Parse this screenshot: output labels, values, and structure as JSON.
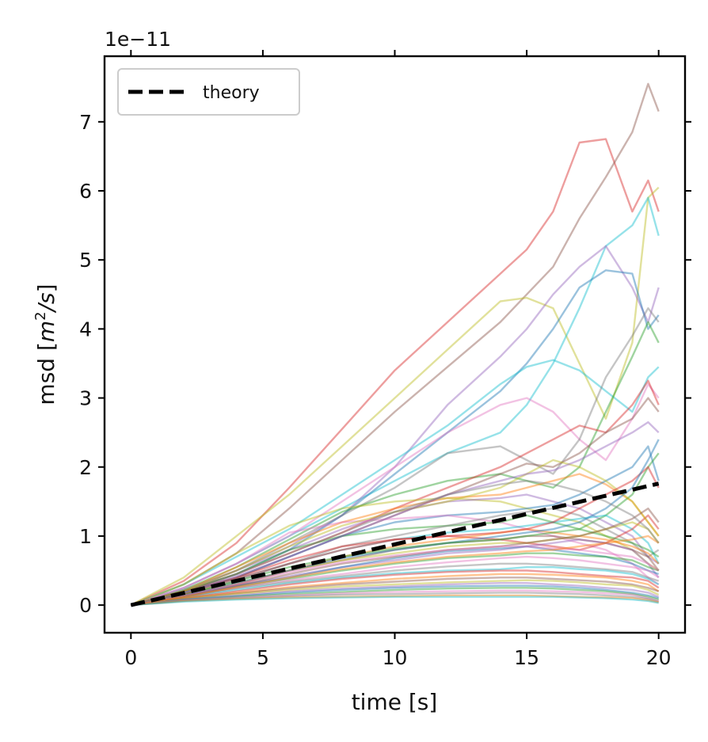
{
  "chart_data": {
    "type": "line",
    "xlabel": "time [s]",
    "ylabel_prefix": "msd [",
    "ylabel_math": "m",
    "ylabel_sup": "2",
    "ylabel_math2": "/s",
    "ylabel_suffix": "]",
    "offset_text": "1e−11",
    "xlim": [
      -1,
      21
    ],
    "ylim": [
      -0.4,
      7.95
    ],
    "x_ticks": [
      0,
      5,
      10,
      15,
      20
    ],
    "x_tick_labels": [
      "0",
      "5",
      "10",
      "15",
      "20"
    ],
    "y_ticks": [
      0,
      1,
      2,
      3,
      4,
      5,
      6,
      7
    ],
    "y_tick_labels": [
      "0",
      "1",
      "2",
      "3",
      "4",
      "5",
      "6",
      "7"
    ],
    "y_scale_factor": "1e-11",
    "grid": false,
    "legend": {
      "placement": "top-left",
      "entries": [
        "theory"
      ]
    },
    "theory": {
      "name": "theory",
      "color": "#000000",
      "x": [
        0,
        20
      ],
      "y": [
        0,
        1.76
      ]
    },
    "trajectory_colors": [
      "#1f77b4",
      "#ff7f0e",
      "#2ca02c",
      "#d62728",
      "#9467bd",
      "#8c564b",
      "#e377c2",
      "#7f7f7f",
      "#bcbd22",
      "#17becf"
    ],
    "x": [
      0,
      2,
      4,
      6,
      8,
      10,
      12,
      14,
      15,
      16,
      17,
      18,
      19,
      19.6,
      20
    ],
    "trajectories": [
      {
        "color": "#d62728",
        "y": [
          0,
          0.35,
          0.9,
          1.7,
          2.55,
          3.4,
          4.1,
          4.8,
          5.15,
          5.7,
          6.7,
          6.75,
          5.7,
          6.15,
          5.7
        ]
      },
      {
        "color": "#8c564b",
        "y": [
          0,
          0.3,
          0.75,
          1.4,
          2.1,
          2.8,
          3.45,
          4.1,
          4.5,
          4.9,
          5.6,
          6.2,
          6.85,
          7.55,
          7.15
        ]
      },
      {
        "color": "#bcbd22",
        "y": [
          0,
          0.4,
          1.0,
          1.6,
          2.3,
          3.0,
          3.7,
          4.4,
          4.45,
          4.3,
          3.5,
          2.7,
          3.8,
          5.9,
          6.05
        ]
      },
      {
        "color": "#17becf",
        "y": [
          0,
          0.25,
          0.6,
          1.0,
          1.4,
          1.8,
          2.2,
          2.5,
          2.9,
          3.5,
          4.3,
          5.2,
          5.5,
          5.9,
          5.35
        ]
      },
      {
        "color": "#9467bd",
        "y": [
          0,
          0.22,
          0.5,
          0.85,
          1.3,
          2.0,
          2.9,
          3.6,
          4.0,
          4.5,
          4.9,
          5.2,
          4.6,
          4.1,
          4.6
        ]
      },
      {
        "color": "#1f77b4",
        "y": [
          0,
          0.2,
          0.45,
          0.8,
          1.3,
          1.9,
          2.5,
          3.1,
          3.5,
          4.0,
          4.6,
          4.85,
          4.8,
          4.0,
          4.2
        ]
      },
      {
        "color": "#17becf",
        "y": [
          0,
          0.3,
          0.7,
          1.1,
          1.6,
          2.1,
          2.6,
          3.2,
          3.45,
          3.55,
          3.4,
          3.1,
          2.8,
          3.3,
          3.45
        ]
      },
      {
        "color": "#e377c2",
        "y": [
          0,
          0.25,
          0.6,
          1.0,
          1.5,
          2.0,
          2.5,
          2.9,
          3.0,
          2.8,
          2.4,
          2.1,
          2.7,
          3.2,
          3.0
        ]
      },
      {
        "color": "#7f7f7f",
        "y": [
          0,
          0.2,
          0.5,
          0.9,
          1.3,
          1.7,
          2.2,
          2.3,
          2.1,
          1.9,
          2.4,
          3.3,
          3.9,
          4.3,
          4.1
        ]
      },
      {
        "color": "#2ca02c",
        "y": [
          0,
          0.22,
          0.55,
          0.95,
          1.35,
          1.6,
          1.8,
          1.9,
          1.8,
          1.7,
          2.0,
          2.8,
          3.6,
          4.1,
          3.8
        ]
      },
      {
        "color": "#d62728",
        "y": [
          0,
          0.2,
          0.45,
          0.75,
          1.05,
          1.4,
          1.7,
          2.0,
          2.2,
          2.4,
          2.6,
          2.5,
          2.9,
          3.25,
          2.9
        ]
      },
      {
        "color": "#8c564b",
        "y": [
          0,
          0.18,
          0.4,
          0.7,
          1.0,
          1.3,
          1.6,
          1.9,
          2.05,
          2.0,
          2.2,
          2.5,
          2.7,
          3.0,
          2.8
        ]
      },
      {
        "color": "#ff7f0e",
        "y": [
          0,
          0.2,
          0.55,
          0.9,
          1.2,
          1.4,
          1.55,
          1.6,
          1.7,
          1.8,
          1.9,
          1.75,
          1.5,
          1.2,
          1.0
        ]
      },
      {
        "color": "#bcbd22",
        "y": [
          0,
          0.3,
          0.75,
          1.15,
          1.4,
          1.5,
          1.55,
          1.5,
          1.4,
          1.3,
          1.2,
          1.0,
          0.8,
          0.6,
          0.5
        ]
      },
      {
        "color": "#9467bd",
        "y": [
          0,
          0.2,
          0.5,
          0.8,
          1.1,
          1.35,
          1.5,
          1.55,
          1.6,
          1.5,
          1.4,
          1.2,
          1.0,
          0.7,
          0.6
        ]
      },
      {
        "color": "#1f77b4",
        "y": [
          0,
          0.18,
          0.4,
          0.7,
          1.0,
          1.2,
          1.3,
          1.35,
          1.4,
          1.45,
          1.6,
          1.8,
          2.0,
          2.3,
          1.8
        ]
      },
      {
        "color": "#e377c2",
        "y": [
          0,
          0.25,
          0.6,
          1.05,
          1.2,
          1.25,
          1.3,
          1.2,
          1.1,
          1.0,
          0.9,
          0.8,
          0.6,
          0.4,
          0.3
        ]
      },
      {
        "color": "#2ca02c",
        "y": [
          0,
          0.2,
          0.45,
          0.8,
          1.0,
          1.1,
          1.15,
          1.2,
          1.3,
          1.2,
          1.1,
          1.3,
          1.6,
          2.0,
          2.2
        ]
      },
      {
        "color": "#7f7f7f",
        "y": [
          0,
          0.15,
          0.35,
          0.6,
          0.85,
          1.0,
          1.15,
          1.3,
          1.35,
          1.4,
          1.3,
          1.1,
          0.9,
          0.7,
          0.8
        ]
      },
      {
        "color": "#17becf",
        "y": [
          0,
          0.18,
          0.38,
          0.6,
          0.8,
          0.95,
          1.05,
          1.1,
          1.15,
          1.2,
          1.25,
          1.3,
          1.1,
          0.9,
          0.6
        ]
      },
      {
        "color": "#d62728",
        "y": [
          0,
          0.2,
          0.4,
          0.65,
          0.85,
          0.95,
          1.0,
          0.95,
          0.9,
          0.85,
          0.8,
          0.9,
          1.1,
          1.3,
          1.1
        ]
      },
      {
        "color": "#ff7f0e",
        "y": [
          0,
          0.15,
          0.3,
          0.5,
          0.7,
          0.85,
          0.95,
          1.05,
          1.1,
          1.05,
          1.0,
          0.95,
          0.85,
          0.75,
          0.6
        ]
      },
      {
        "color": "#8c564b",
        "y": [
          0,
          0.14,
          0.3,
          0.5,
          0.65,
          0.8,
          0.9,
          0.95,
          1.0,
          1.0,
          0.95,
          0.9,
          0.8,
          0.7,
          0.5
        ]
      },
      {
        "color": "#bcbd22",
        "y": [
          0,
          0.15,
          0.32,
          0.5,
          0.65,
          0.75,
          0.85,
          0.9,
          0.9,
          0.95,
          1.0,
          1.1,
          1.2,
          1.1,
          0.9
        ]
      },
      {
        "color": "#9467bd",
        "y": [
          0,
          0.13,
          0.28,
          0.42,
          0.55,
          0.65,
          0.75,
          0.8,
          0.85,
          0.9,
          0.95,
          0.9,
          0.8,
          0.6,
          0.4
        ]
      },
      {
        "color": "#1f77b4",
        "y": [
          0,
          0.14,
          0.28,
          0.4,
          0.55,
          0.68,
          0.78,
          0.82,
          0.85,
          0.8,
          0.75,
          0.7,
          0.6,
          0.5,
          0.45
        ]
      },
      {
        "color": "#2ca02c",
        "y": [
          0,
          0.12,
          0.26,
          0.38,
          0.5,
          0.6,
          0.68,
          0.72,
          0.75,
          0.75,
          0.72,
          0.7,
          0.65,
          0.55,
          0.5
        ]
      },
      {
        "color": "#e377c2",
        "y": [
          0,
          0.12,
          0.25,
          0.36,
          0.45,
          0.55,
          0.62,
          0.68,
          0.7,
          0.68,
          0.65,
          0.6,
          0.55,
          0.5,
          0.4
        ]
      },
      {
        "color": "#7f7f7f",
        "y": [
          0,
          0.12,
          0.24,
          0.34,
          0.42,
          0.5,
          0.56,
          0.6,
          0.6,
          0.58,
          0.55,
          0.52,
          0.48,
          0.4,
          0.35
        ]
      },
      {
        "color": "#17becf",
        "y": [
          0,
          0.11,
          0.22,
          0.32,
          0.4,
          0.46,
          0.5,
          0.52,
          0.55,
          0.55,
          0.52,
          0.5,
          0.45,
          0.38,
          0.3
        ]
      },
      {
        "color": "#d62728",
        "y": [
          0,
          0.1,
          0.2,
          0.3,
          0.38,
          0.44,
          0.48,
          0.5,
          0.5,
          0.48,
          0.45,
          0.42,
          0.4,
          0.35,
          0.25
        ]
      },
      {
        "color": "#ff7f0e",
        "y": [
          0,
          0.1,
          0.18,
          0.26,
          0.32,
          0.38,
          0.42,
          0.45,
          0.45,
          0.44,
          0.42,
          0.4,
          0.35,
          0.3,
          0.2
        ]
      },
      {
        "color": "#8c564b",
        "y": [
          0,
          0.09,
          0.17,
          0.24,
          0.3,
          0.34,
          0.38,
          0.4,
          0.4,
          0.38,
          0.36,
          0.34,
          0.3,
          0.25,
          0.2
        ]
      },
      {
        "color": "#bcbd22",
        "y": [
          0,
          0.09,
          0.16,
          0.22,
          0.27,
          0.3,
          0.33,
          0.35,
          0.36,
          0.35,
          0.33,
          0.3,
          0.28,
          0.22,
          0.15
        ]
      },
      {
        "color": "#9467bd",
        "y": [
          0,
          0.08,
          0.14,
          0.2,
          0.24,
          0.27,
          0.3,
          0.32,
          0.32,
          0.3,
          0.28,
          0.25,
          0.22,
          0.18,
          0.12
        ]
      },
      {
        "color": "#1f77b4",
        "y": [
          0,
          0.08,
          0.13,
          0.18,
          0.22,
          0.25,
          0.27,
          0.28,
          0.28,
          0.27,
          0.25,
          0.22,
          0.18,
          0.14,
          0.1
        ]
      },
      {
        "color": "#2ca02c",
        "y": [
          0,
          0.07,
          0.12,
          0.16,
          0.19,
          0.22,
          0.24,
          0.25,
          0.25,
          0.24,
          0.22,
          0.2,
          0.16,
          0.12,
          0.08
        ]
      },
      {
        "color": "#e377c2",
        "y": [
          0,
          0.07,
          0.11,
          0.14,
          0.17,
          0.19,
          0.2,
          0.21,
          0.21,
          0.2,
          0.19,
          0.17,
          0.15,
          0.1,
          0.06
        ]
      },
      {
        "color": "#7f7f7f",
        "y": [
          0,
          0.06,
          0.1,
          0.13,
          0.15,
          0.16,
          0.17,
          0.18,
          0.18,
          0.17,
          0.16,
          0.14,
          0.12,
          0.09,
          0.05
        ]
      },
      {
        "color": "#ff7f0e",
        "y": [
          0,
          0.06,
          0.09,
          0.11,
          0.12,
          0.13,
          0.14,
          0.14,
          0.14,
          0.13,
          0.12,
          0.11,
          0.1,
          0.07,
          0.04
        ]
      },
      {
        "color": "#17becf",
        "y": [
          0,
          0.05,
          0.08,
          0.1,
          0.11,
          0.12,
          0.12,
          0.12,
          0.12,
          0.12,
          0.11,
          0.1,
          0.08,
          0.06,
          0.03
        ]
      },
      {
        "color": "#bcbd22",
        "y": [
          0,
          0.2,
          0.5,
          0.85,
          1.15,
          1.35,
          1.5,
          1.7,
          1.9,
          2.1,
          2.0,
          1.8,
          1.5,
          1.2,
          1.0
        ]
      },
      {
        "color": "#9467bd",
        "y": [
          0,
          0.17,
          0.42,
          0.7,
          1.0,
          1.3,
          1.6,
          1.8,
          1.9,
          1.95,
          2.1,
          2.3,
          2.5,
          2.65,
          2.5
        ]
      },
      {
        "color": "#d62728",
        "y": [
          0,
          0.16,
          0.38,
          0.6,
          0.8,
          0.95,
          1.0,
          1.05,
          1.1,
          1.2,
          1.4,
          1.6,
          1.8,
          2.0,
          1.7
        ]
      },
      {
        "color": "#1f77b4",
        "y": [
          0,
          0.14,
          0.32,
          0.5,
          0.68,
          0.8,
          0.9,
          1.0,
          1.05,
          1.1,
          1.2,
          1.4,
          1.7,
          2.1,
          2.4
        ]
      },
      {
        "color": "#2ca02c",
        "y": [
          0,
          0.15,
          0.35,
          0.55,
          0.7,
          0.82,
          0.9,
          0.95,
          1.0,
          1.05,
          1.1,
          1.0,
          0.9,
          0.8,
          0.7
        ]
      },
      {
        "color": "#8c564b",
        "y": [
          0,
          0.13,
          0.28,
          0.45,
          0.6,
          0.7,
          0.8,
          0.85,
          0.9,
          0.95,
          1.0,
          1.1,
          1.25,
          1.4,
          1.2
        ]
      },
      {
        "color": "#e377c2",
        "y": [
          0,
          0.14,
          0.3,
          0.48,
          0.62,
          0.72,
          0.8,
          0.85,
          0.85,
          0.82,
          0.8,
          0.75,
          0.7,
          0.6,
          0.5
        ]
      },
      {
        "color": "#ff7f0e",
        "y": [
          0,
          0.12,
          0.26,
          0.4,
          0.52,
          0.62,
          0.7,
          0.75,
          0.78,
          0.8,
          0.85,
          0.9,
          0.95,
          1.0,
          0.9
        ]
      },
      {
        "color": "#7f7f7f",
        "y": [
          0,
          0.18,
          0.45,
          0.75,
          1.05,
          1.35,
          1.6,
          1.75,
          1.8,
          1.75,
          1.65,
          1.5,
          1.3,
          1.1,
          0.9
        ]
      }
    ]
  }
}
